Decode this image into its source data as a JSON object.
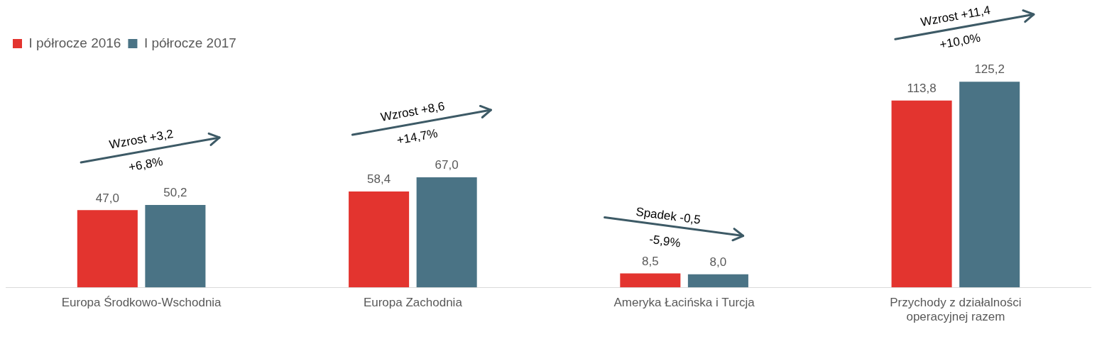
{
  "chart_data": {
    "type": "bar",
    "categories": [
      "Europa Środkowo-Wschodnia",
      "Europa Zachodnia",
      "Ameryka Łacińska i Turcja",
      "Przychody z działalności operacyjnej razem"
    ],
    "series": [
      {
        "name": "I półrocze 2016",
        "color": "#e3342f",
        "values": [
          47.0,
          58.4,
          8.5,
          113.8
        ],
        "value_labels": [
          "47,0",
          "58,4",
          "8,5",
          "113,8"
        ]
      },
      {
        "name": "I półrocze 2017",
        "color": "#4a7385",
        "values": [
          50.2,
          67.0,
          8.0,
          125.2
        ],
        "value_labels": [
          "50,2",
          "67,0",
          "8,0",
          "125,2"
        ]
      }
    ],
    "annotations": [
      "Wzrost +3,2",
      "+6,8%",
      "Wzrost +8,6",
      "+14,7%",
      "Spadek -0,5",
      "-5,9%",
      "Wzrost +11,4",
      "+10,0%"
    ],
    "legend": "top left",
    "grid": false
  }
}
